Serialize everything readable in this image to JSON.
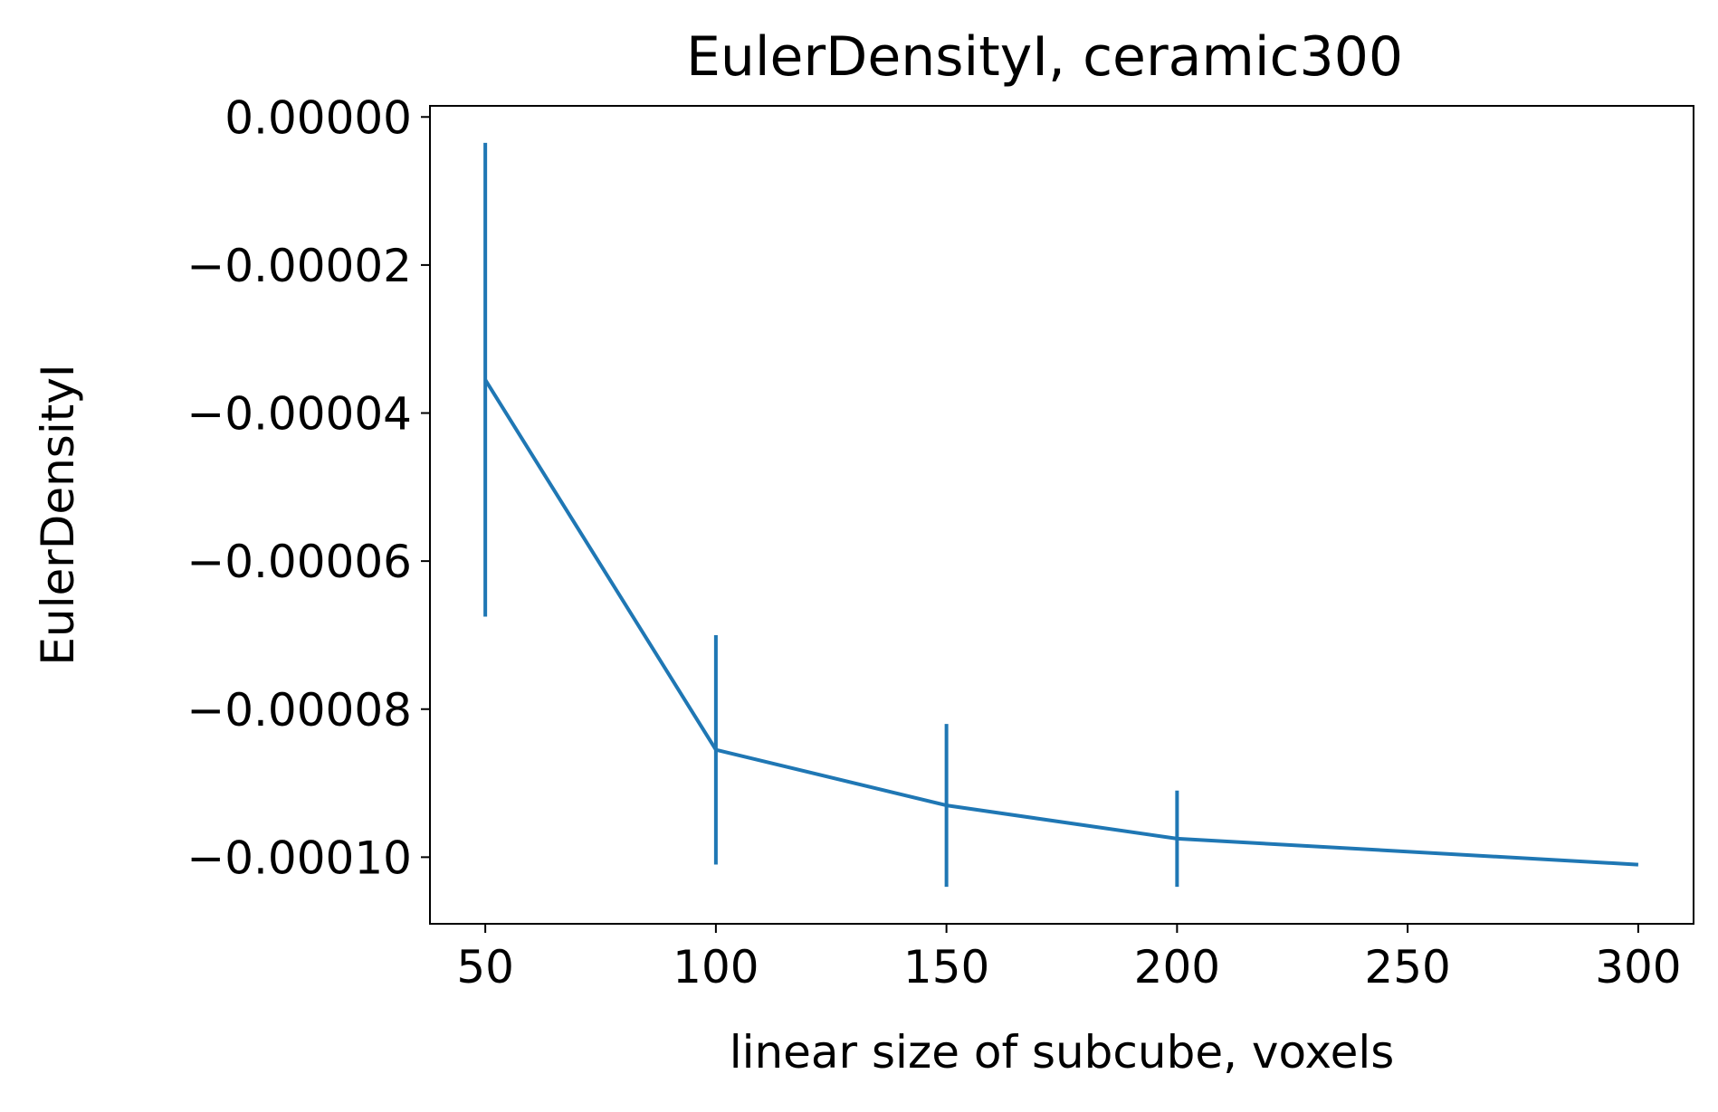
{
  "chart_data": {
    "type": "line",
    "title": "EulerDensityI, ceramic300",
    "xlabel": "linear size of subcube, voxels",
    "ylabel": "EulerDensityI",
    "xlim": [
      38,
      312
    ],
    "ylim": [
      -0.000109,
      1.5e-06
    ],
    "x_ticks": [
      50,
      100,
      150,
      200,
      250,
      300
    ],
    "x_tick_labels": [
      "50",
      "100",
      "150",
      "200",
      "250",
      "300"
    ],
    "y_ticks": [
      0,
      -2e-05,
      -4e-05,
      -6e-05,
      -8e-05,
      -0.0001
    ],
    "y_tick_labels": [
      "0.00000",
      "−0.00002",
      "−0.00004",
      "−0.00006",
      "−0.00008",
      "−0.00010"
    ],
    "grid": false,
    "series": [
      {
        "color": "#1f77b4",
        "x": [
          50,
          100,
          150,
          200,
          300
        ],
        "y": [
          -3.55e-05,
          -8.55e-05,
          -9.3e-05,
          -9.75e-05,
          -0.000101
        ],
        "yerr": [
          3.2e-05,
          1.55e-05,
          1.1e-05,
          6.5e-06,
          0
        ]
      }
    ]
  }
}
